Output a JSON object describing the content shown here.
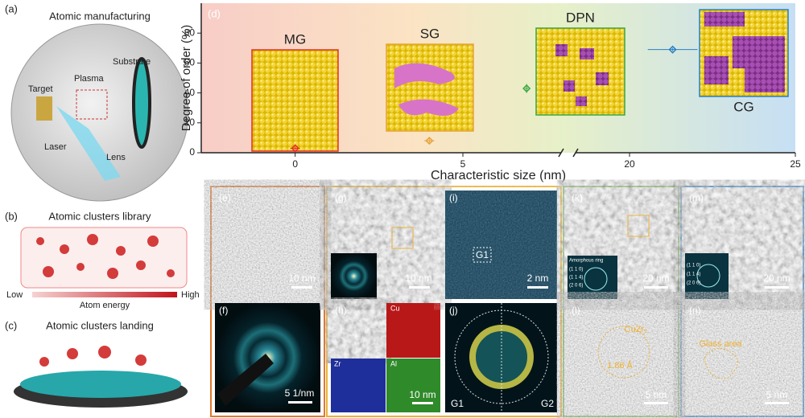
{
  "panels": {
    "a": {
      "label": "(a)",
      "title": "Atomic manufacturing",
      "labels": [
        "Target",
        "Plasma",
        "Substrate",
        "Laser",
        "Lens"
      ]
    },
    "b": {
      "label": "(b)",
      "title": "Atomic clusters library",
      "low": "Low",
      "axis": "Atom energy",
      "high": "High"
    },
    "c": {
      "label": "(c)",
      "title": "Atomic clusters landing"
    },
    "e": {
      "label": "(e)",
      "scale": "10 nm"
    },
    "f": {
      "label": "(f)",
      "scale": "5 1/nm"
    },
    "g": {
      "label": "(g)",
      "scale": "10 nm"
    },
    "h": {
      "label": "(h)",
      "maps": [
        "Cu",
        "Zr",
        "Al"
      ],
      "scale": "10 nm"
    },
    "i": {
      "label": "(i)",
      "scale": "2 nm",
      "region": "G1"
    },
    "j": {
      "label": "(j)",
      "left": "G1",
      "right": "G2"
    },
    "k": {
      "label": "(k)",
      "scale": "20 nm",
      "inset": "Amorphous ring",
      "planes": [
        "(1 1 0)",
        "(1 1 4)",
        "(2 0 6)"
      ]
    },
    "l": {
      "label": "(l)",
      "phase": "CuZr₂",
      "spacing": "1.86 Å",
      "scale": "5 nm"
    },
    "m": {
      "label": "(m)",
      "scale": "20 nm",
      "planes": [
        "(1 1 0)",
        "(1 1 4)",
        "(2 0 6)"
      ]
    },
    "n": {
      "label": "(n)",
      "region": "Glass area",
      "scale": "5 nm"
    }
  },
  "chart_data": {
    "type": "scatter",
    "panel_label": "(d)",
    "xlabel": "Characteristic size (nm)",
    "ylabel": "Degree of order (%)",
    "xlim": [
      -2.8,
      25
    ],
    "xbreak": [
      8,
      18.3
    ],
    "xticks": [
      0,
      5,
      20,
      25
    ],
    "ylim": [
      0,
      100
    ],
    "yticks": [
      0,
      20,
      40,
      60,
      80
    ],
    "series": [
      {
        "name": "MG",
        "color": "#e0302a",
        "x": [
          0
        ],
        "values": [
          3
        ],
        "xerr": [
          0.15
        ],
        "yerr": [
          1
        ]
      },
      {
        "name": "SG",
        "color": "#e8a23a",
        "x": [
          4
        ],
        "values": [
          8
        ],
        "xerr": [
          0.15
        ],
        "yerr": [
          2
        ]
      },
      {
        "name": "DPN",
        "color": "#3aa640",
        "x": [
          6.9
        ],
        "values": [
          43
        ],
        "xerr": [
          0.05
        ],
        "yerr": [
          3
        ]
      },
      {
        "name": "CG",
        "color": "#2a7fc4",
        "x": [
          21.3
        ],
        "values": [
          69
        ],
        "xerr": [
          0.75
        ],
        "yerr": [
          1
        ]
      }
    ]
  }
}
